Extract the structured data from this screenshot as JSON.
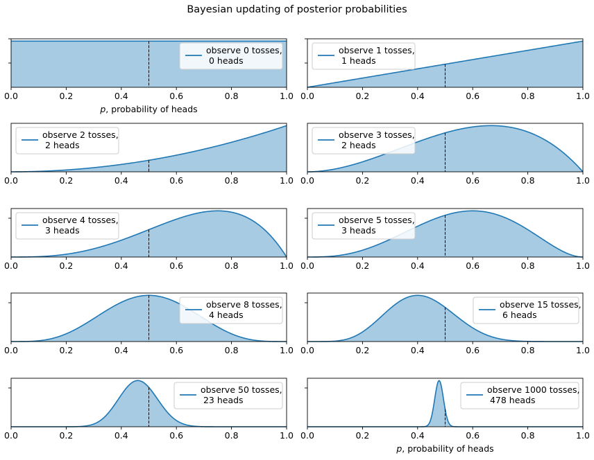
{
  "figure": {
    "title": "Bayesian updating of posterior probabilities",
    "xlabel_prefix": "p",
    "xlabel_suffix": ", probability of heads",
    "colors": {
      "line": "#1f77b4",
      "fill": "#a6cbe3",
      "reference": "#000000"
    }
  },
  "chart_data": [
    {
      "type": "area",
      "trials": 0,
      "heads": 0,
      "legend": [
        "observe 0 tosses,",
        " 0 heads"
      ],
      "legend_position": "upper right",
      "xlim": [
        0,
        1
      ],
      "xticks": [
        "0.0",
        "0.2",
        "0.4",
        "0.6",
        "0.8",
        "1.0"
      ],
      "ytick_count": 2,
      "reference_line_x": 0.5,
      "xlabel": "p, probability of heads"
    },
    {
      "type": "area",
      "trials": 1,
      "heads": 1,
      "legend": [
        "observe 1 tosses,",
        " 1 heads"
      ],
      "legend_position": "upper left",
      "xlim": [
        0,
        1
      ],
      "xticks": [
        "0.0",
        "0.2",
        "0.4",
        "0.6",
        "0.8",
        "1.0"
      ],
      "ytick_count": 2,
      "reference_line_x": 0.5
    },
    {
      "type": "area",
      "trials": 2,
      "heads": 2,
      "legend": [
        "observe 2 tosses,",
        " 2 heads"
      ],
      "legend_position": "upper left",
      "xlim": [
        0,
        1
      ],
      "xticks": [
        "0.0",
        "0.2",
        "0.4",
        "0.6",
        "0.8",
        "1.0"
      ],
      "ytick_count": 0,
      "reference_line_x": 0.5
    },
    {
      "type": "area",
      "trials": 3,
      "heads": 2,
      "legend": [
        "observe 3 tosses,",
        " 2 heads"
      ],
      "legend_position": "upper left",
      "xlim": [
        0,
        1
      ],
      "xticks": [
        "0.0",
        "0.2",
        "0.4",
        "0.6",
        "0.8",
        "1.0"
      ],
      "ytick_count": 0,
      "reference_line_x": 0.5
    },
    {
      "type": "area",
      "trials": 4,
      "heads": 3,
      "legend": [
        "observe 4 tosses,",
        " 3 heads"
      ],
      "legend_position": "upper left",
      "xlim": [
        0,
        1
      ],
      "xticks": [
        "0.0",
        "0.2",
        "0.4",
        "0.6",
        "0.8",
        "1.0"
      ],
      "ytick_count": 1,
      "reference_line_x": 0.5
    },
    {
      "type": "area",
      "trials": 5,
      "heads": 3,
      "legend": [
        "observe 5 tosses,",
        " 3 heads"
      ],
      "legend_position": "upper left",
      "xlim": [
        0,
        1
      ],
      "xticks": [
        "0.0",
        "0.2",
        "0.4",
        "0.6",
        "0.8",
        "1.0"
      ],
      "ytick_count": 1,
      "reference_line_x": 0.5
    },
    {
      "type": "area",
      "trials": 8,
      "heads": 4,
      "legend": [
        "observe 8 tosses,",
        " 4 heads"
      ],
      "legend_position": "upper right",
      "xlim": [
        0,
        1
      ],
      "xticks": [
        "0.0",
        "0.2",
        "0.4",
        "0.6",
        "0.8",
        "1.0"
      ],
      "ytick_count": 1,
      "reference_line_x": 0.5
    },
    {
      "type": "area",
      "trials": 15,
      "heads": 6,
      "legend": [
        "observe 15 tosses,",
        " 6 heads"
      ],
      "legend_position": "upper right",
      "xlim": [
        0,
        1
      ],
      "xticks": [
        "0.0",
        "0.2",
        "0.4",
        "0.6",
        "0.8",
        "1.0"
      ],
      "ytick_count": 1,
      "reference_line_x": 0.5
    },
    {
      "type": "area",
      "trials": 50,
      "heads": 23,
      "legend": [
        "observe 50 tosses,",
        " 23 heads"
      ],
      "legend_position": "upper right",
      "xlim": [
        0,
        1
      ],
      "xticks": [
        "0.0",
        "0.2",
        "0.4",
        "0.6",
        "0.8",
        "1.0"
      ],
      "ytick_count": 1,
      "reference_line_x": 0.5
    },
    {
      "type": "area",
      "trials": 1000,
      "heads": 478,
      "legend": [
        "observe 1000 tosses,",
        " 478 heads"
      ],
      "legend_position": "upper right",
      "xlim": [
        0,
        1
      ],
      "xticks": [
        "0.0",
        "0.2",
        "0.4",
        "0.6",
        "0.8",
        "1.0"
      ],
      "ytick_count": 1,
      "reference_line_x": 0.5,
      "xlabel": "p, probability of heads"
    }
  ]
}
